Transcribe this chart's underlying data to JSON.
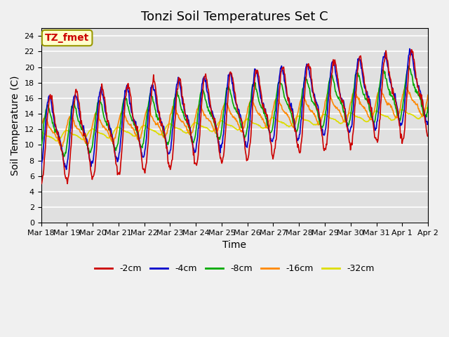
{
  "title": "Tonzi Soil Temperatures Set C",
  "xlabel": "Time",
  "ylabel": "Soil Temperature (C)",
  "ylim": [
    0,
    25
  ],
  "yticks": [
    0,
    2,
    4,
    6,
    8,
    10,
    12,
    14,
    16,
    18,
    20,
    22,
    24
  ],
  "bg_color": "#e0e0e0",
  "fig_color": "#f0f0f0",
  "series_colors": [
    "#cc0000",
    "#0000cc",
    "#00aa00",
    "#ff8800",
    "#dddd00"
  ],
  "series_labels": [
    "-2cm",
    "-4cm",
    "-8cm",
    "-16cm",
    "-32cm"
  ],
  "annotation_text": "TZ_fmet",
  "annotation_color": "#cc0000",
  "annotation_bg": "#ffffcc",
  "annotation_border": "#999900",
  "xtick_labels": [
    "Mar 18",
    "Mar 19",
    "Mar 20",
    "Mar 21",
    "Mar 22",
    "Mar 23",
    "Mar 24",
    "Mar 25",
    "Mar 26",
    "Mar 27",
    "Mar 28",
    "Mar 29",
    "Mar 30",
    "Mar 31",
    "Apr 1",
    "Apr 2"
  ],
  "line_width": 1.2
}
